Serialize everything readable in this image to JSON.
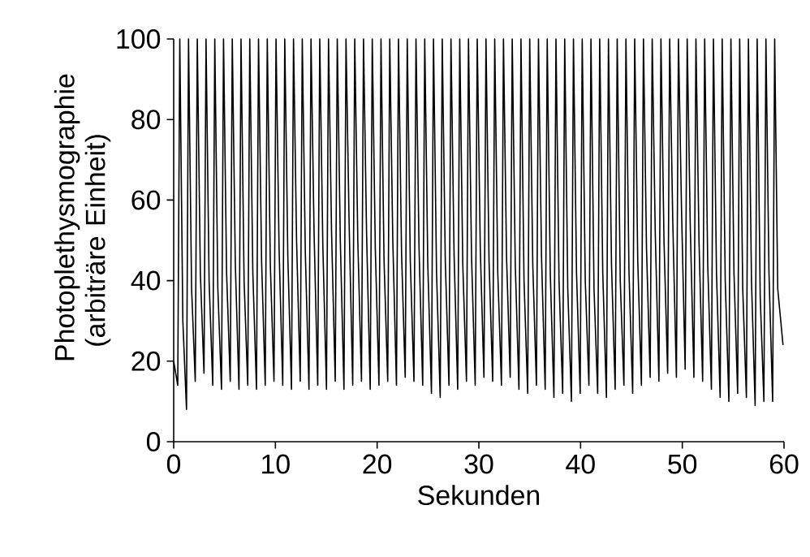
{
  "chart_data": {
    "type": "line",
    "xlabel": "Sekunden",
    "ylabel": "Photoplethysmographie (arbiträre Einheit)",
    "xlim": [
      0,
      60
    ],
    "ylim": [
      0,
      100
    ],
    "xticks": [
      0,
      10,
      20,
      30,
      40,
      50,
      60
    ],
    "yticks": [
      0,
      20,
      40,
      60,
      80,
      100
    ],
    "grid": false,
    "marker": "none",
    "line_style": "solid",
    "series": [
      {
        "color": "#000000",
        "x": [
          0.0,
          0.4,
          0.6,
          0.9,
          1.26,
          1.46,
          1.76,
          2.12,
          2.32,
          2.62,
          2.98,
          3.18,
          3.48,
          3.84,
          4.04,
          4.34,
          4.7,
          4.9,
          5.2,
          5.56,
          5.76,
          6.06,
          6.42,
          6.62,
          6.92,
          7.28,
          7.48,
          7.78,
          8.14,
          8.34,
          8.64,
          9.0,
          9.2,
          9.5,
          9.86,
          10.06,
          10.36,
          10.72,
          10.92,
          11.22,
          11.58,
          11.78,
          12.08,
          12.44,
          12.64,
          12.94,
          13.3,
          13.5,
          13.8,
          14.16,
          14.36,
          14.66,
          15.02,
          15.22,
          15.52,
          15.88,
          16.08,
          16.38,
          16.74,
          16.94,
          17.24,
          17.6,
          17.8,
          18.1,
          18.46,
          18.66,
          18.96,
          19.32,
          19.52,
          19.82,
          20.18,
          20.38,
          20.68,
          21.04,
          21.24,
          21.54,
          21.9,
          22.1,
          22.4,
          22.76,
          22.96,
          23.26,
          23.62,
          23.82,
          24.12,
          24.48,
          24.68,
          24.98,
          25.34,
          25.54,
          25.84,
          26.2,
          26.4,
          26.7,
          27.06,
          27.26,
          27.56,
          27.92,
          28.12,
          28.42,
          28.78,
          28.98,
          29.28,
          29.64,
          29.84,
          30.14,
          30.5,
          30.7,
          31.0,
          31.36,
          31.56,
          31.86,
          32.22,
          32.42,
          32.72,
          33.08,
          33.28,
          33.58,
          33.94,
          34.14,
          34.44,
          34.8,
          35.0,
          35.3,
          35.66,
          35.86,
          36.16,
          36.52,
          36.72,
          37.02,
          37.38,
          37.58,
          37.88,
          38.24,
          38.44,
          38.74,
          39.1,
          39.3,
          39.6,
          39.96,
          40.16,
          40.46,
          40.82,
          41.02,
          41.32,
          41.68,
          41.88,
          42.18,
          42.54,
          42.74,
          43.04,
          43.4,
          43.6,
          43.9,
          44.26,
          44.46,
          44.76,
          45.12,
          45.32,
          45.62,
          45.98,
          46.18,
          46.48,
          46.84,
          47.04,
          47.34,
          47.7,
          47.9,
          48.2,
          48.56,
          48.76,
          49.06,
          49.42,
          49.62,
          49.92,
          50.28,
          50.48,
          50.78,
          51.14,
          51.34,
          51.64,
          52.0,
          52.2,
          52.5,
          52.86,
          53.06,
          53.36,
          53.72,
          53.92,
          54.22,
          54.58,
          54.78,
          55.08,
          55.44,
          55.64,
          55.94,
          56.3,
          56.5,
          56.8,
          57.16,
          57.36,
          57.66,
          58.02,
          58.22,
          58.52,
          58.88,
          59.08,
          59.38,
          59.9
        ],
        "values": [
          20,
          14,
          100,
          30,
          8,
          100,
          38,
          15,
          100,
          42,
          17,
          100,
          40,
          14,
          100,
          38,
          13,
          100,
          42,
          15,
          100,
          44,
          13,
          100,
          40,
          14,
          100,
          42,
          13,
          100,
          45,
          14,
          100,
          44,
          15,
          100,
          48,
          14,
          100,
          46,
          13,
          100,
          50,
          15,
          100,
          47,
          13,
          100,
          52,
          14,
          100,
          49,
          13,
          100,
          52,
          15,
          100,
          50,
          13,
          100,
          55,
          14,
          100,
          50,
          15,
          100,
          52,
          13,
          100,
          48,
          14,
          100,
          45,
          15,
          100,
          50,
          14,
          100,
          47,
          16,
          100,
          45,
          15,
          100,
          48,
          14,
          100,
          44,
          12,
          100,
          42,
          11,
          100,
          45,
          14,
          100,
          47,
          13,
          100,
          44,
          15,
          100,
          46,
          14,
          100,
          48,
          16,
          100,
          45,
          15,
          100,
          42,
          14,
          100,
          46,
          16,
          100,
          44,
          13,
          100,
          40,
          12,
          100,
          44,
          14,
          100,
          46,
          13,
          100,
          42,
          11,
          100,
          40,
          12,
          100,
          38,
          10,
          100,
          42,
          12,
          100,
          40,
          14,
          100,
          38,
          12,
          100,
          42,
          11,
          100,
          44,
          13,
          100,
          40,
          14,
          100,
          42,
          12,
          100,
          45,
          14,
          100,
          48,
          16,
          100,
          52,
          15,
          100,
          50,
          17,
          100,
          55,
          16,
          100,
          58,
          18,
          100,
          54,
          16,
          100,
          50,
          15,
          100,
          44,
          13,
          100,
          42,
          11,
          100,
          40,
          10,
          100,
          42,
          12,
          100,
          38,
          11,
          100,
          40,
          9,
          100,
          36,
          10,
          100,
          42,
          10,
          100,
          38,
          24
        ]
      }
    ]
  }
}
